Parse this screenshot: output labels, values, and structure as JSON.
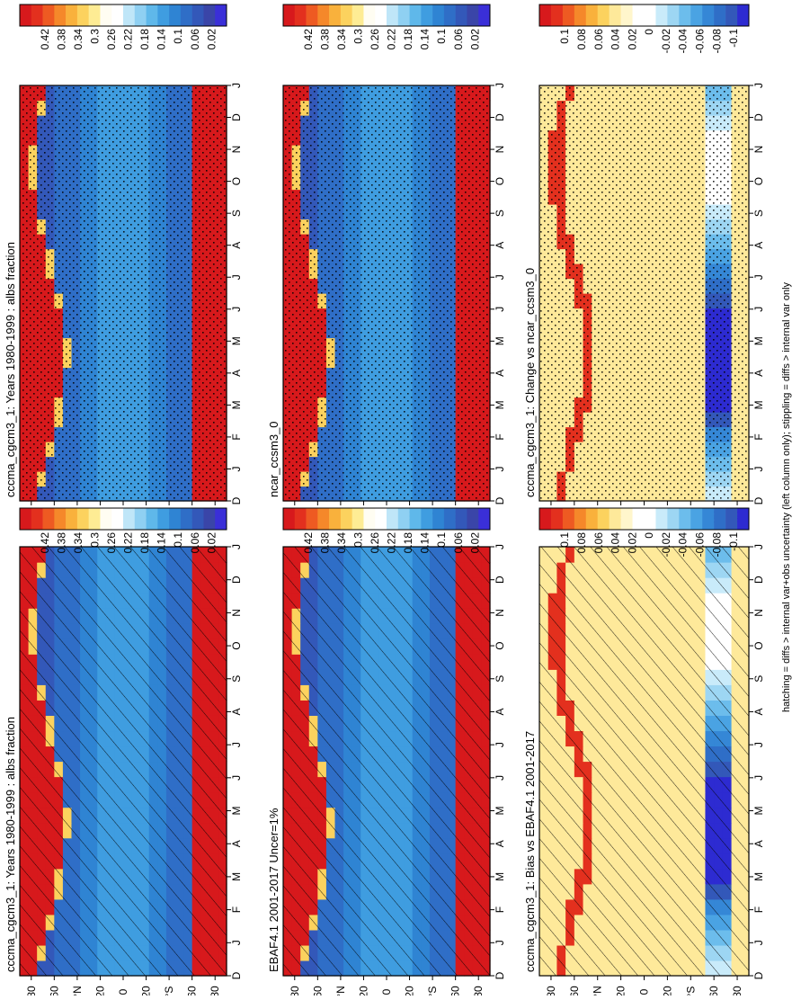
{
  "footer_note": "hatching = diffs > internal var+obs uncertainty (left column only); stippling = diffs > internal var only",
  "colorscales": {
    "abs": {
      "labels": [
        "0.42",
        "0.38",
        "0.34",
        "0.3",
        "0.26",
        "0.22",
        "0.18",
        "0.14",
        "0.1",
        "0.06",
        "0.02"
      ],
      "colors": [
        "#d7191c",
        "#e3301e",
        "#ee5a22",
        "#f5882a",
        "#f9b13c",
        "#fcd25e",
        "#feec94",
        "#fffdf2",
        "#ffffff",
        "#bfe6f8",
        "#8fd0f2",
        "#5fb8ea",
        "#3f9de0",
        "#2f84d3",
        "#2f6ec7",
        "#3358b9",
        "#3a45a8",
        "#3a2fd8"
      ]
    },
    "diff": {
      "labels": [
        "0.1",
        "0.08",
        "0.06",
        "0.04",
        "0.02",
        "0",
        "-0.02",
        "-0.04",
        "-0.06",
        "-0.08",
        "-0.1"
      ],
      "colors": [
        "#d7191c",
        "#e3301e",
        "#ee5a22",
        "#f5882a",
        "#f9b13c",
        "#fcd25e",
        "#fee99a",
        "#fff6cc",
        "#ffffff",
        "#ffffff",
        "#c9ebfa",
        "#9dd6f3",
        "#6cbdec",
        "#4aa3e3",
        "#3587d6",
        "#2f6ec7",
        "#3358b9",
        "#2d2bd1"
      ]
    }
  },
  "chart_data": [
    {
      "type": "heatmap",
      "title": "cccma_cgcm3_1: Years 1980-1999 : albs fraction",
      "x_ticks": [
        "D",
        "J",
        "F",
        "M",
        "A",
        "M",
        "J",
        "J",
        "A",
        "S",
        "O",
        "N",
        "D",
        "J"
      ],
      "y_ticks": [
        "80",
        "60",
        "°N",
        "20",
        "0",
        "20",
        "°S",
        "60",
        "80"
      ],
      "colorscale": "abs",
      "overlay": "hatch",
      "z_range": [
        0,
        0.44
      ]
    },
    {
      "type": "heatmap",
      "title": "cccma_cgcm3_1: Years 1980-1999 : albs fraction",
      "x_ticks": [
        "D",
        "J",
        "F",
        "M",
        "A",
        "M",
        "J",
        "J",
        "A",
        "S",
        "O",
        "N",
        "D",
        "J"
      ],
      "y_ticks": [
        "80",
        "60",
        "°N",
        "20",
        "0",
        "20",
        "°S",
        "60",
        "80"
      ],
      "colorscale": "abs",
      "overlay": "stipple",
      "z_range": [
        0,
        0.44
      ]
    },
    {
      "type": "heatmap",
      "title": "EBAF4.1 2001-2017 Uncer=1%",
      "x_ticks": [
        "D",
        "J",
        "F",
        "M",
        "A",
        "M",
        "J",
        "J",
        "A",
        "S",
        "O",
        "N",
        "D",
        "J"
      ],
      "y_ticks": [
        "80",
        "60",
        "°N",
        "20",
        "0",
        "20",
        "°S",
        "60",
        "80"
      ],
      "colorscale": "abs",
      "overlay": "hatch",
      "z_range": [
        0,
        0.44
      ]
    },
    {
      "type": "heatmap",
      "title": "ncar_ccsm3_0",
      "x_ticks": [
        "D",
        "J",
        "F",
        "M",
        "A",
        "M",
        "J",
        "J",
        "A",
        "S",
        "O",
        "N",
        "D",
        "J"
      ],
      "y_ticks": [
        "80",
        "60",
        "°N",
        "20",
        "0",
        "20",
        "°S",
        "60",
        "80"
      ],
      "colorscale": "abs",
      "overlay": "stipple",
      "z_range": [
        0,
        0.44
      ]
    },
    {
      "type": "heatmap",
      "title": "cccma_cgcm3_1: Bias vs EBAF4.1 2001-2017",
      "x_ticks": [
        "D",
        "J",
        "F",
        "M",
        "A",
        "M",
        "J",
        "J",
        "A",
        "S",
        "O",
        "N",
        "D",
        "J"
      ],
      "y_ticks": [
        "80",
        "60",
        "°N",
        "20",
        "0",
        "20",
        "°S",
        "60",
        "80"
      ],
      "colorscale": "diff",
      "overlay": "hatch",
      "z_range": [
        -0.11,
        0.11
      ]
    },
    {
      "type": "heatmap",
      "title": "cccma_cgcm3_1: Change vs ncar_ccsm3_0",
      "x_ticks": [
        "D",
        "J",
        "F",
        "M",
        "A",
        "M",
        "J",
        "J",
        "A",
        "S",
        "O",
        "N",
        "D",
        "J"
      ],
      "y_ticks": [
        "80",
        "60",
        "°N",
        "20",
        "0",
        "20",
        "°S",
        "60",
        "80"
      ],
      "colorscale": "diff",
      "overlay": "stipple",
      "z_range": [
        -0.11,
        0.11
      ]
    }
  ]
}
